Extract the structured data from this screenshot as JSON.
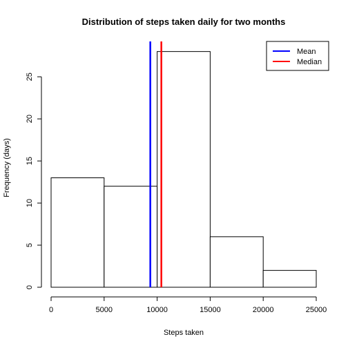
{
  "chart_data": {
    "type": "bar",
    "subtype": "histogram",
    "title": "Distribution of steps taken daily for two months",
    "xlabel": "Steps taken",
    "ylabel": "Frequency (days)",
    "bins": [
      {
        "from": 0,
        "to": 5000,
        "count": 13
      },
      {
        "from": 5000,
        "to": 10000,
        "count": 12
      },
      {
        "from": 10000,
        "to": 15000,
        "count": 28
      },
      {
        "from": 15000,
        "to": 20000,
        "count": 6
      },
      {
        "from": 20000,
        "to": 25000,
        "count": 2
      }
    ],
    "xlim": [
      0,
      25000
    ],
    "ylim": [
      0,
      28
    ],
    "xticks": [
      0,
      5000,
      10000,
      15000,
      20000,
      25000
    ],
    "yticks": [
      0,
      5,
      10,
      15,
      20,
      25
    ],
    "vlines": [
      {
        "name": "Mean",
        "value": 9354,
        "color": "#0000ff"
      },
      {
        "name": "Median",
        "value": 10395,
        "color": "#ff0000"
      }
    ],
    "bar_fill": "#ffffff",
    "bar_stroke": "#000000",
    "grid": false,
    "legend": {
      "position": "top-right",
      "entries": [
        "Mean",
        "Median"
      ]
    }
  }
}
